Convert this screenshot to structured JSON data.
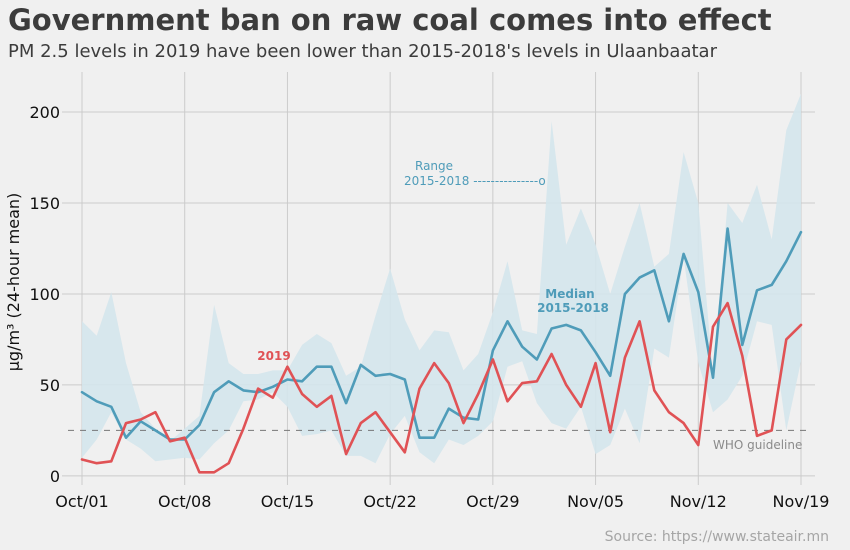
{
  "figure": {
    "title": "Government ban on raw coal comes into effect",
    "subtitle": "PM 2.5 levels in 2019 have been lower than 2015-2018's levels in Ulaanbaatar",
    "source": "Source: https://www.stateair.mn"
  },
  "chart_data": {
    "type": "line",
    "ylabel": "μg/m³ (24-hour mean)",
    "ylim": [
      -5,
      222
    ],
    "xlim": [
      0,
      49
    ],
    "yticks": [
      0,
      50,
      100,
      150,
      200
    ],
    "xticks": [
      {
        "i": 0,
        "label": "Oct/01"
      },
      {
        "i": 7,
        "label": "Oct/08"
      },
      {
        "i": 14,
        "label": "Oct/15"
      },
      {
        "i": 21,
        "label": "Oct/22"
      },
      {
        "i": 28,
        "label": "Oct/29"
      },
      {
        "i": 35,
        "label": "Nov/05"
      },
      {
        "i": 42,
        "label": "Nov/12"
      },
      {
        "i": 49,
        "label": "Nov/19"
      }
    ],
    "grid": true,
    "colors": {
      "median": "#4f9cb9",
      "y2019": "#e05255",
      "range": "#d4e6ec",
      "guideline": "#777777",
      "annotation_range": "#4f9cb9"
    },
    "series": [
      {
        "name": "Median 2015-2018",
        "key": "median",
        "values": [
          46,
          41,
          38,
          21,
          30,
          25,
          20,
          20,
          28,
          46,
          52,
          47,
          46,
          49,
          53,
          52,
          60,
          60,
          40,
          61,
          55,
          56,
          53,
          21,
          21,
          37,
          32,
          31,
          69,
          85,
          71,
          64,
          81,
          83,
          80,
          68,
          55,
          100,
          109,
          113,
          85,
          122,
          101,
          54,
          136,
          72,
          102,
          105,
          118,
          134
        ]
      },
      {
        "name": "2019",
        "key": "y2019",
        "values": [
          9,
          7,
          8,
          29,
          31,
          35,
          19,
          21,
          2,
          2,
          7,
          26,
          48,
          43,
          60,
          45,
          38,
          44,
          12,
          29,
          35,
          24,
          13,
          48,
          62,
          51,
          29,
          45,
          64,
          41,
          51,
          52,
          67,
          50,
          38,
          62,
          24,
          65,
          85,
          47,
          35,
          29,
          17,
          82,
          95,
          66,
          22,
          25,
          75,
          83
        ]
      }
    ],
    "range": {
      "name": "Range 2015-2018",
      "lower": [
        10,
        20,
        35,
        20,
        15,
        8,
        9,
        10,
        9,
        18,
        25,
        41,
        42,
        46,
        38,
        22,
        23,
        25,
        11,
        11,
        7,
        23,
        33,
        13,
        7,
        20,
        17,
        22,
        30,
        60,
        63,
        40,
        29,
        26,
        38,
        12,
        17,
        37,
        18,
        70,
        65,
        120,
        62,
        35,
        42,
        55,
        85,
        83,
        25,
        63
      ],
      "upper": [
        85,
        77,
        101,
        62,
        35,
        26,
        19,
        26,
        33,
        94,
        62,
        56,
        56,
        58,
        58,
        72,
        78,
        73,
        55,
        60,
        88,
        114,
        86,
        69,
        80,
        79,
        58,
        67,
        90,
        118,
        80,
        78,
        195,
        127,
        147,
        127,
        100,
        126,
        150,
        115,
        122,
        178,
        150,
        55,
        150,
        139,
        160,
        130,
        190,
        210
      ]
    },
    "guideline": {
      "value": 25,
      "label": "WHO guideline"
    },
    "annotations": {
      "range_line1": "Range",
      "range_line2": "2015-2018 ---------------o",
      "median_line1": "Median",
      "median_line2": "2015-2018",
      "y2019_label": "2019"
    }
  }
}
